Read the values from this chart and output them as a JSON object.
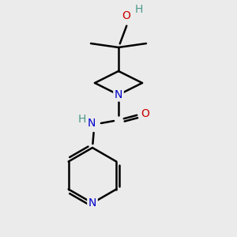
{
  "bg_color": "#ebebeb",
  "atom_colors": {
    "C": "#000000",
    "N": "#0000cc",
    "O": "#cc0000",
    "H": "#4a9a8a"
  },
  "bond_color": "#000000",
  "bond_width": 1.8,
  "figsize": [
    3.0,
    3.0
  ],
  "dpi": 100,
  "font_size": 10
}
